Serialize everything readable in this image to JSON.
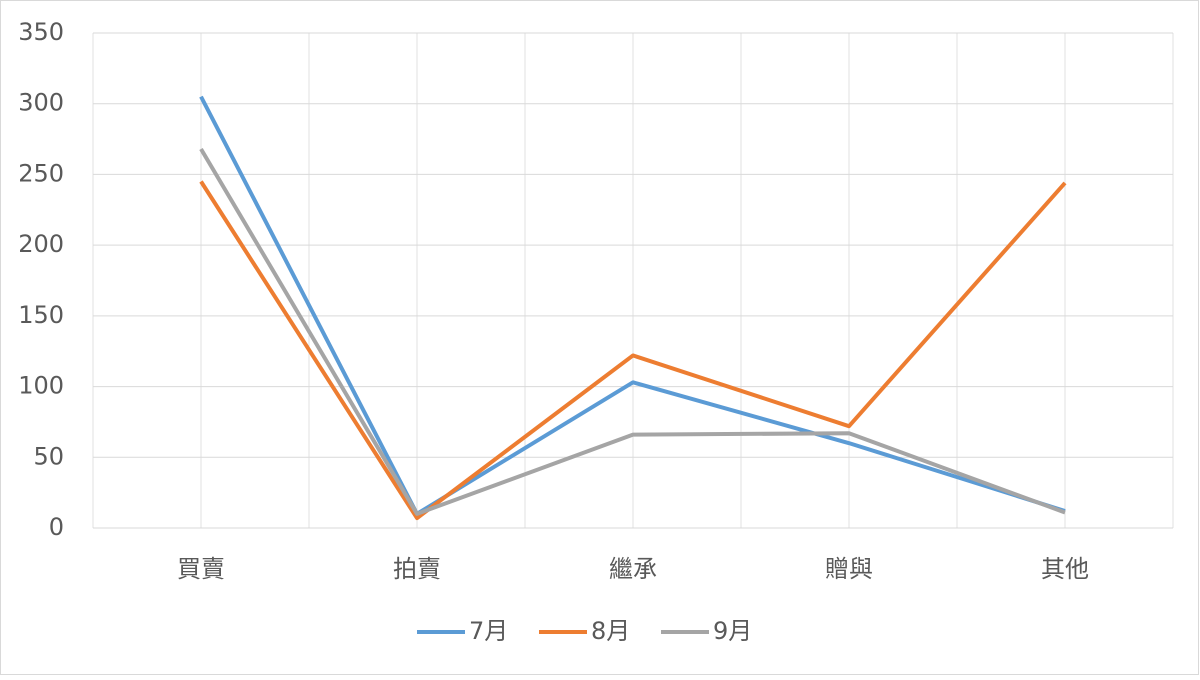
{
  "chart_data": {
    "type": "line",
    "categories": [
      "買賣",
      "拍賣",
      "繼承",
      "贈與",
      "其他"
    ],
    "series": [
      {
        "name": "7月",
        "color": "#5b9bd5",
        "values": [
          305,
          10,
          103,
          60,
          12
        ]
      },
      {
        "name": "8月",
        "color": "#ed7d31",
        "values": [
          245,
          7,
          122,
          72,
          244
        ]
      },
      {
        "name": "9月",
        "color": "#a5a5a5",
        "values": [
          268,
          10,
          66,
          67,
          11
        ]
      }
    ],
    "ylim": [
      0,
      350
    ],
    "yticks": [
      0,
      50,
      100,
      150,
      200,
      250,
      300,
      350
    ],
    "grid": true,
    "legend": "bottom"
  }
}
